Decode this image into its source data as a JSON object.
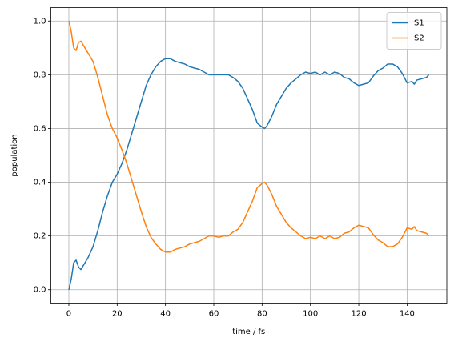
{
  "chart_data": {
    "type": "line",
    "xlabel": "time / fs",
    "ylabel": "population",
    "x": [
      0,
      1,
      2,
      3,
      4,
      5,
      6,
      8,
      10,
      12,
      14,
      16,
      18,
      20,
      22,
      24,
      26,
      28,
      30,
      32,
      34,
      36,
      38,
      40,
      42,
      44,
      46,
      48,
      50,
      52,
      54,
      56,
      58,
      60,
      62,
      64,
      66,
      68,
      70,
      72,
      74,
      76,
      78,
      80,
      81,
      82,
      84,
      86,
      88,
      90,
      92,
      94,
      96,
      98,
      100,
      102,
      104,
      106,
      108,
      110,
      112,
      114,
      116,
      118,
      120,
      122,
      124,
      126,
      128,
      130,
      132,
      134,
      136,
      138,
      140,
      142,
      143,
      144,
      146,
      148,
      149
    ],
    "series": [
      {
        "name": "S1",
        "color": "#1f77b4",
        "values": [
          0.0,
          0.04,
          0.1,
          0.11,
          0.085,
          0.075,
          0.09,
          0.12,
          0.16,
          0.22,
          0.29,
          0.35,
          0.4,
          0.43,
          0.47,
          0.52,
          0.58,
          0.64,
          0.7,
          0.76,
          0.8,
          0.83,
          0.85,
          0.86,
          0.86,
          0.85,
          0.845,
          0.84,
          0.83,
          0.825,
          0.82,
          0.81,
          0.8,
          0.8,
          0.8,
          0.8,
          0.8,
          0.79,
          0.775,
          0.75,
          0.71,
          0.67,
          0.62,
          0.605,
          0.6,
          0.61,
          0.645,
          0.69,
          0.72,
          0.75,
          0.77,
          0.785,
          0.8,
          0.81,
          0.805,
          0.81,
          0.8,
          0.81,
          0.8,
          0.81,
          0.805,
          0.79,
          0.785,
          0.77,
          0.76,
          0.765,
          0.77,
          0.795,
          0.815,
          0.825,
          0.84,
          0.84,
          0.83,
          0.805,
          0.77,
          0.775,
          0.765,
          0.78,
          0.785,
          0.79,
          0.8
        ]
      },
      {
        "name": "S2",
        "color": "#ff7f0e",
        "values": [
          1.0,
          0.96,
          0.9,
          0.89,
          0.92,
          0.925,
          0.91,
          0.88,
          0.85,
          0.79,
          0.72,
          0.65,
          0.6,
          0.565,
          0.52,
          0.47,
          0.41,
          0.35,
          0.29,
          0.235,
          0.195,
          0.17,
          0.15,
          0.14,
          0.14,
          0.15,
          0.155,
          0.16,
          0.17,
          0.175,
          0.18,
          0.19,
          0.2,
          0.2,
          0.195,
          0.2,
          0.2,
          0.215,
          0.225,
          0.25,
          0.29,
          0.33,
          0.38,
          0.395,
          0.4,
          0.39,
          0.355,
          0.31,
          0.28,
          0.25,
          0.23,
          0.215,
          0.2,
          0.19,
          0.195,
          0.19,
          0.2,
          0.19,
          0.2,
          0.19,
          0.195,
          0.21,
          0.215,
          0.23,
          0.24,
          0.235,
          0.23,
          0.205,
          0.185,
          0.175,
          0.16,
          0.16,
          0.17,
          0.195,
          0.23,
          0.225,
          0.235,
          0.22,
          0.215,
          0.21,
          0.2
        ]
      }
    ],
    "xlim": [
      -7.45,
      156.45
    ],
    "ylim": [
      -0.05,
      1.05
    ],
    "xticks": [
      0,
      20,
      40,
      60,
      80,
      100,
      120,
      140
    ],
    "yticks": [
      {
        "value": 0.0,
        "label": "0.0"
      },
      0.2,
      0.4,
      0.6,
      0.8,
      {
        "value": 1.0,
        "label": "1.0"
      }
    ],
    "grid": true,
    "legend": "upper right"
  }
}
